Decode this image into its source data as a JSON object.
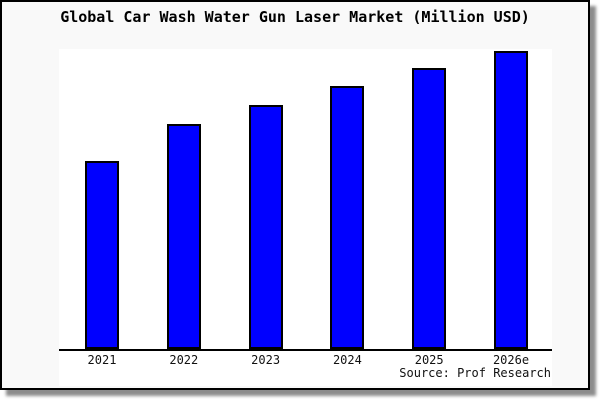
{
  "page": {
    "title": "Global Car Wash Water Gun Laser Market (Million USD)",
    "source": "Source: Prof Research"
  },
  "colors": {
    "bar_fill": "#0000ff",
    "bar_border": "#000000",
    "page_bg": "#f9f9f9",
    "plot_bg": "#ffffff",
    "axis": "#000000",
    "text": "#000000"
  },
  "chart_data": {
    "type": "bar",
    "title": "Global Car Wash Water Gun Laser Market (Million USD)",
    "unit": "Million USD",
    "categories": [
      "2021",
      "2022",
      "2023",
      "2024",
      "2025",
      "2026e"
    ],
    "values": [
      62.7,
      75.0,
      81.3,
      87.7,
      93.7,
      99.3
    ],
    "values_note": "relative scale estimated from bar heights; chart shows no y-axis tick labels",
    "xlabel": "",
    "ylabel": "",
    "ylim": [
      0,
      100
    ],
    "grid": false,
    "legend": false,
    "source": "Source: Prof Research"
  }
}
